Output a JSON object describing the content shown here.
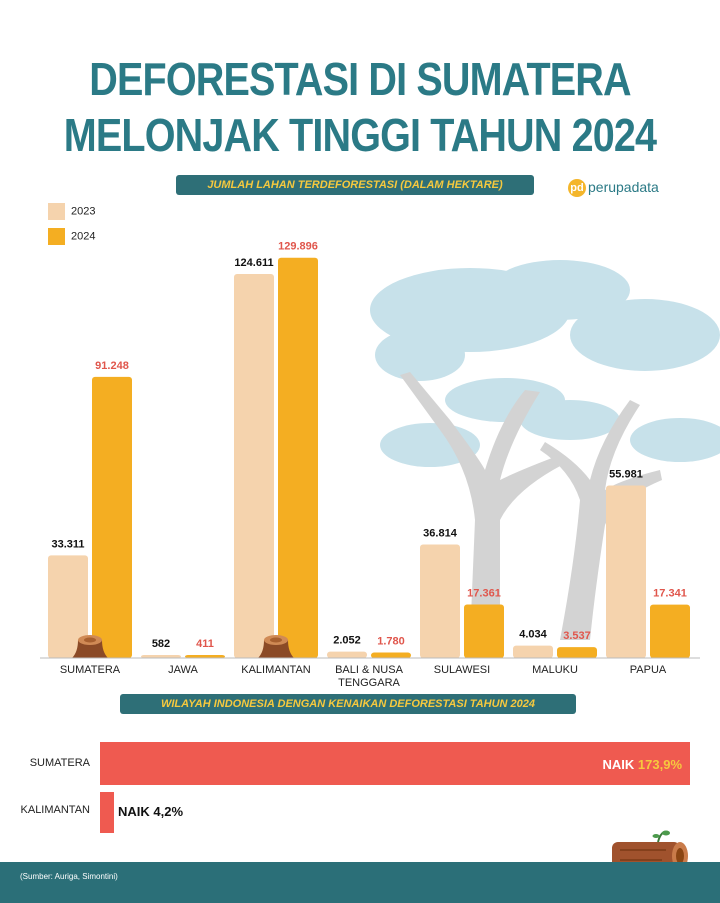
{
  "header": {
    "title_line1": "DEFORESTASI DI SUMATERA",
    "title_line2": "MELONJAK TINGGI TAHUN 2024",
    "brand": "perupadata",
    "brand_mark": "pd"
  },
  "colors": {
    "title": "#2b7a86",
    "bar_2023": "#f5d3ad",
    "bar_2024": "#f4ae22",
    "label_2024": "#e0564c",
    "increase_bar": "#ef5a50",
    "footer": "#2b6f78"
  },
  "chart_data": [
    {
      "type": "bar",
      "title": "JUMLAH LAHAN TERDEFORESTASI (DALAM HEKTARE)",
      "categories": [
        "SUMATERA",
        "JAWA",
        "KALIMANTAN",
        "BALI & NUSA TENGGARA",
        "SULAWESI",
        "MALUKU",
        "PAPUA"
      ],
      "category_lines": [
        [
          "SUMATERA"
        ],
        [
          "JAWA"
        ],
        [
          "KALIMANTAN"
        ],
        [
          "BALI & NUSA",
          "TENGGARA"
        ],
        [
          "SULAWESI"
        ],
        [
          "MALUKU"
        ],
        [
          "PAPUA"
        ]
      ],
      "series": [
        {
          "name": "2023",
          "values": [
            33311,
            582,
            124611,
            2052,
            36814,
            4034,
            55981
          ],
          "labels": [
            "33.311",
            "582",
            "124.611",
            "2.052",
            "36.814",
            "4.034",
            "55.981"
          ]
        },
        {
          "name": "2024",
          "values": [
            91248,
            411,
            129896,
            1780,
            17361,
            3537,
            17341
          ],
          "labels": [
            "91.248",
            "411",
            "129.896",
            "1.780",
            "17.361",
            "3.537",
            "17.341"
          ]
        }
      ],
      "ylim": [
        0,
        135000
      ],
      "legend_position": "top-left",
      "grid": false
    },
    {
      "type": "bar",
      "orientation": "horizontal",
      "title": "WILAYAH INDONESIA DENGAN KENAIKAN DEFORESTASI TAHUN 2024",
      "categories": [
        "SUMATERA",
        "KALIMANTAN"
      ],
      "values": [
        173.9,
        4.2
      ],
      "prefix": "NAIK",
      "labels": [
        "173,9%",
        "4,2%"
      ]
    }
  ],
  "footer": {
    "source": "(Sumber: Auriga, Simontini)"
  }
}
